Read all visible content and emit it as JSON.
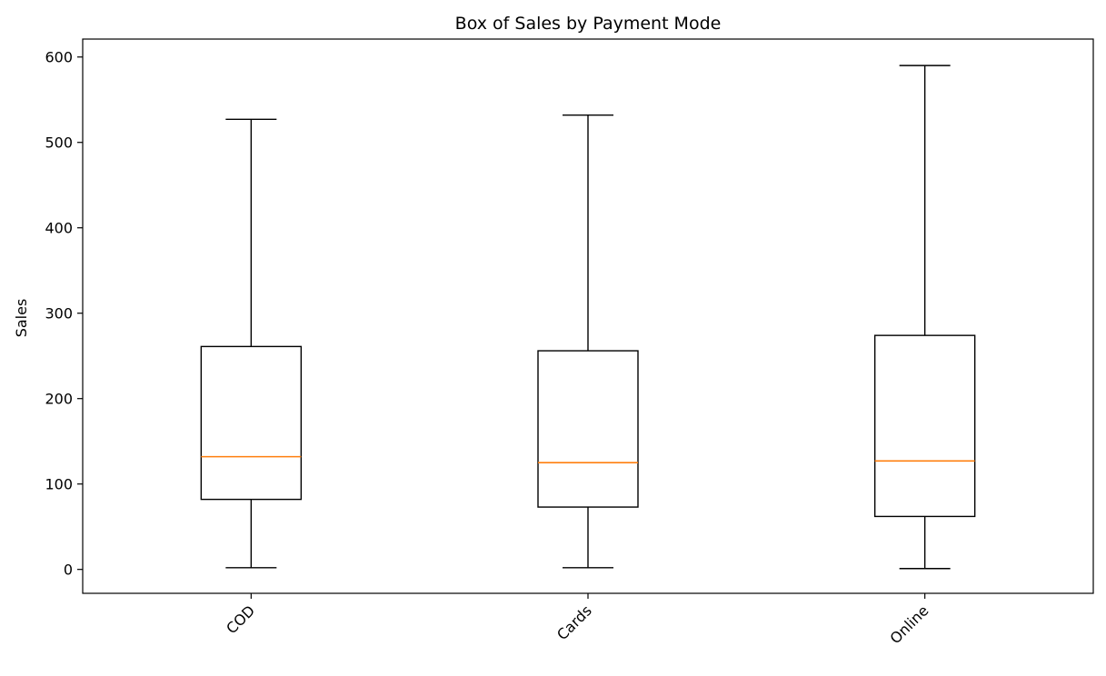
{
  "chart_data": {
    "type": "box",
    "title": "Box of Sales by Payment Mode",
    "xlabel": "",
    "ylabel": "Sales",
    "ylim": [
      -28,
      621
    ],
    "yticks": [
      0,
      100,
      200,
      300,
      400,
      500,
      600
    ],
    "categories": [
      "COD",
      "Cards",
      "Online"
    ],
    "boxes": [
      {
        "category": "COD",
        "whisker_low": 2,
        "q1": 82,
        "median": 132,
        "q3": 261,
        "whisker_high": 527
      },
      {
        "category": "Cards",
        "whisker_low": 2,
        "q1": 73,
        "median": 125,
        "q3": 256,
        "whisker_high": 532
      },
      {
        "category": "Online",
        "whisker_low": 1,
        "q1": 62,
        "median": 127,
        "q3": 274,
        "whisker_high": 590
      }
    ],
    "grid": false,
    "colors": {
      "box": "#000000",
      "median": "#ff7f0e",
      "axes": "#000000",
      "background": "#ffffff"
    }
  }
}
